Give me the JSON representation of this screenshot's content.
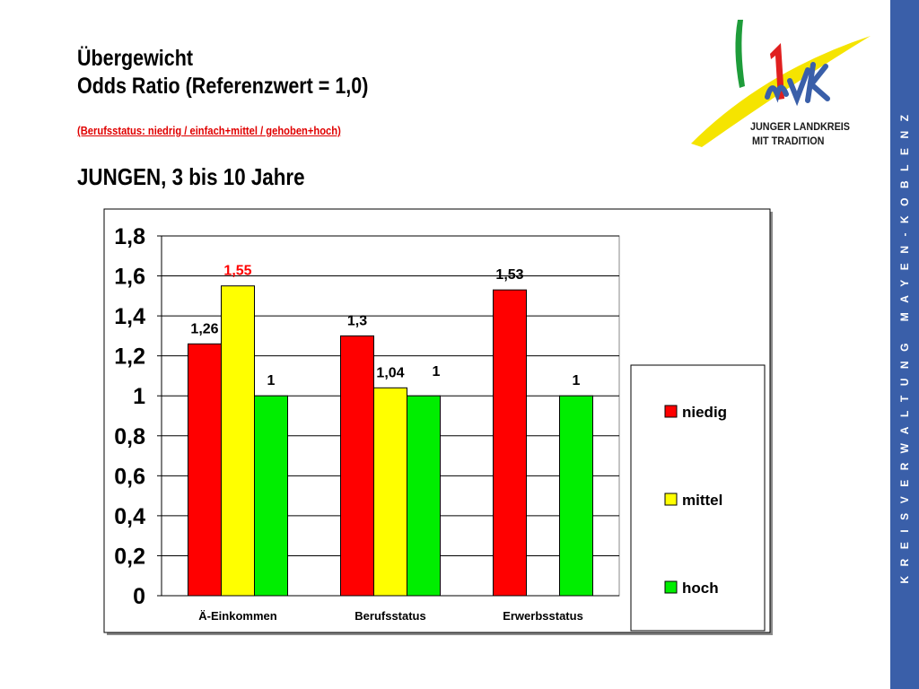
{
  "header": {
    "title_line1": "Übergewicht",
    "title_line2": "Odds Ratio (Referenzwert = 1,0)",
    "subtitle": "(Berufsstatus: niedrig  /  einfach+mittel  /  gehoben+hoch)",
    "heading": "JUNGEN, 3 bis 10 Jahre"
  },
  "logo": {
    "text_line1": "JUNGER LANDKREIS",
    "text_line2": "MIT TRADITION",
    "colors": {
      "green": "#1e9c3a",
      "red": "#e01f1f",
      "yellow": "#f5e400",
      "blue": "#3a5fa9"
    }
  },
  "sidebar": {
    "text": "KREISVERWALTUNG MAYEN-KOBLENZ",
    "color": "#3a5fa9"
  },
  "chart_data": {
    "type": "bar",
    "categories": [
      "Ä-Einkommen",
      "Berufsstatus",
      "Erwerbsstatus"
    ],
    "series": [
      {
        "name": "niedig",
        "color": "#ff0000",
        "values": [
          1.26,
          1.3,
          1.53
        ],
        "labels": [
          "1,26",
          "1,3",
          "1,53"
        ]
      },
      {
        "name": "mittel",
        "color": "#ffff00",
        "values": [
          1.55,
          1.04,
          null
        ],
        "labels": [
          "1,55",
          "1,04",
          ""
        ]
      },
      {
        "name": "hoch",
        "color": "#00ee00",
        "values": [
          1,
          1,
          1
        ],
        "labels": [
          "1",
          "1",
          "1"
        ]
      }
    ],
    "highlight_label": {
      "series": 1,
      "category": 0,
      "color": "#ff0000"
    },
    "ylim": [
      0,
      1.8
    ],
    "yticks": [
      {
        "value": 0,
        "label": "0"
      },
      {
        "value": 0.2,
        "label": "0,2"
      },
      {
        "value": 0.4,
        "label": "0,4"
      },
      {
        "value": 0.6,
        "label": "0,6"
      },
      {
        "value": 0.8,
        "label": "0,8"
      },
      {
        "value": 1,
        "label": "1"
      },
      {
        "value": 1.2,
        "label": "1,2"
      },
      {
        "value": 1.4,
        "label": "1,4"
      },
      {
        "value": 1.6,
        "label": "1,6"
      },
      {
        "value": 1.8,
        "label": "1,8"
      }
    ],
    "grid": true,
    "legend": "right"
  }
}
